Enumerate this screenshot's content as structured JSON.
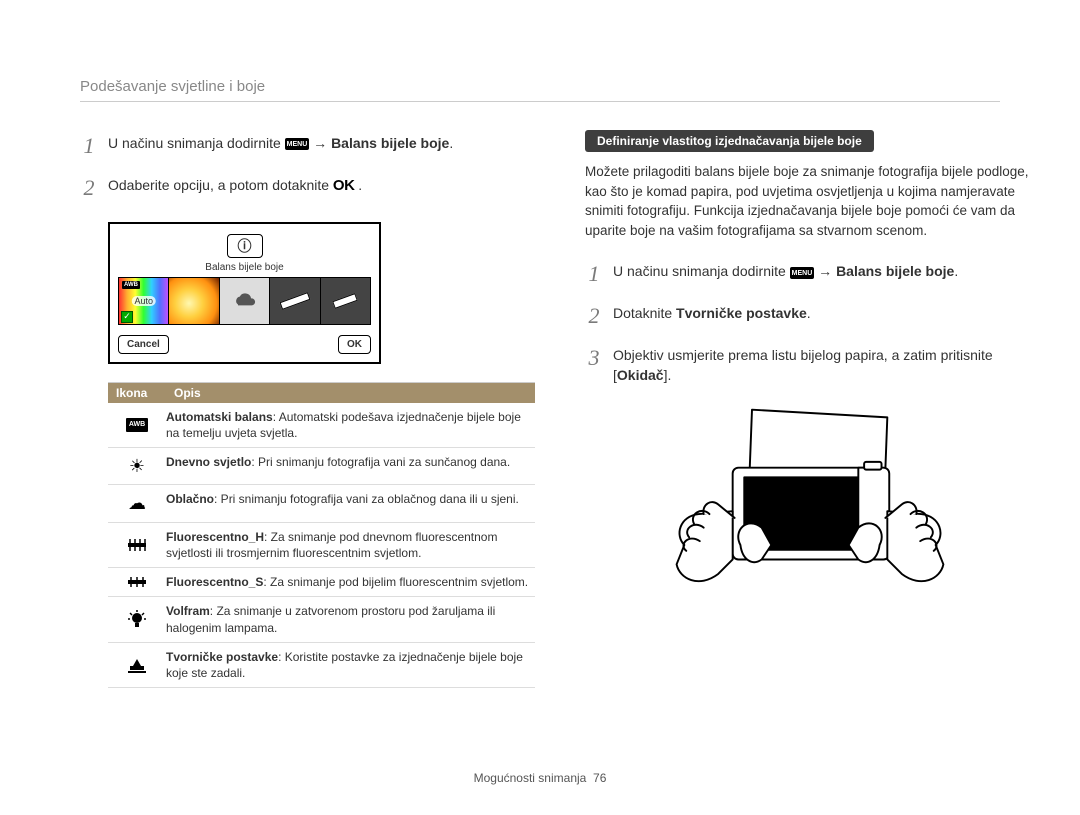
{
  "header": {
    "title": "Podešavanje svjetline i boje"
  },
  "left": {
    "step1_pre": "U načinu snimanja dodirnite ",
    "step1_menu": "MENU",
    "step1_arrow": " → ",
    "step1_bold": "Balans bijele boje",
    "step2_text": "Odaberite opciju, a potom dotaknite ",
    "ok": "OK",
    "screen": {
      "title": "Balans bijele boje",
      "awb_label": "AWB",
      "auto_text": "Auto",
      "cancel": "Cancel",
      "ok": "OK"
    },
    "table": {
      "head_icon": "Ikona",
      "head_desc": "Opis",
      "rows": [
        {
          "icon": "awb",
          "bold": "Automatski balans",
          "rest": ": Automatski podešava izjednačenje bijele boje na temelju uvjeta svjetla."
        },
        {
          "icon": "sun",
          "bold": "Dnevno svjetlo",
          "rest": ": Pri snimanju fotografija vani za sunčanog dana."
        },
        {
          "icon": "cloud",
          "bold": "Oblačno",
          "rest": ": Pri snimanju fotografija vani za oblačnog dana ili u sjeni."
        },
        {
          "icon": "fluorH",
          "bold": "Fluorescentno_H",
          "rest": ": Za snimanje pod dnevnom fluorescentnom svjetlosti ili trosmjernim fluorescentnim svjetlom."
        },
        {
          "icon": "fluorS",
          "bold": "Fluorescentno_S",
          "rest": ": Za snimanje pod bijelim fluorescentnim svjetlom."
        },
        {
          "icon": "bulb",
          "bold": "Volfram",
          "rest": ": Za snimanje u zatvorenom prostoru pod žaruljama ili halogenim lampama."
        },
        {
          "icon": "custom",
          "bold": "Tvorničke postavke",
          "rest": ": Koristite postavke za izjednačenje bijele boje koje ste zadali."
        }
      ]
    }
  },
  "right": {
    "pill": "Definiranje vlastitog izjednačavanja bijele boje",
    "para": "Možete prilagoditi balans bijele boje za snimanje fotografija bijele podloge, kao što je komad papira, pod uvjetima osvjetljenja u kojima namjeravate snimiti fotografiju. Funkcija izjednačavanja bijele boje pomoći će vam da uparite boje na vašim fotografijama sa stvarnom scenom.",
    "step1_pre": "U načinu snimanja dodirnite ",
    "step1_menu": "MENU",
    "step1_arrow": " → ",
    "step1_bold": "Balans bijele boje",
    "step2_pre": "Dotaknite ",
    "step2_bold": "Tvorničke postavke",
    "step3_a": "Objektiv usmjerite prema listu bijelog papira, a zatim pritisnite [",
    "step3_bold": "Okidač",
    "step3_b": "]."
  },
  "footer": {
    "section": "Mogućnosti snimanja",
    "page": "76"
  },
  "colors": {
    "header_text": "#888888",
    "step_num": "#7a7a7a",
    "table_head_bg": "#a38f6b",
    "pill_bg": "#3e3e3e"
  }
}
